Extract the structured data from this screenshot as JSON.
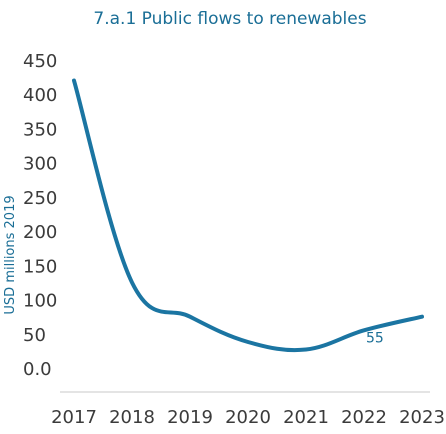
{
  "chart_data": {
    "type": "line",
    "title": "7.a.1 Public flows to renewables",
    "xlabel": "",
    "ylabel": "USD millions 2019",
    "x": [
      "2017",
      "2018",
      "2019",
      "2020",
      "2021",
      "2022",
      "2023"
    ],
    "y_ticks": [
      "0.0",
      "50",
      "100",
      "150",
      "200",
      "250",
      "300",
      "350",
      "400",
      "450"
    ],
    "ylim": [
      0,
      450
    ],
    "series": [
      {
        "values": [
          420,
          125,
          75,
          38,
          27,
          55,
          75
        ]
      }
    ],
    "data_labels": [
      {
        "index": 5,
        "text": "55"
      }
    ],
    "grid": false,
    "colors": {
      "line": "#1b75a2",
      "title": "#1a6e96",
      "text": "#3b3b3b",
      "axis": "#c8c8c8"
    }
  }
}
